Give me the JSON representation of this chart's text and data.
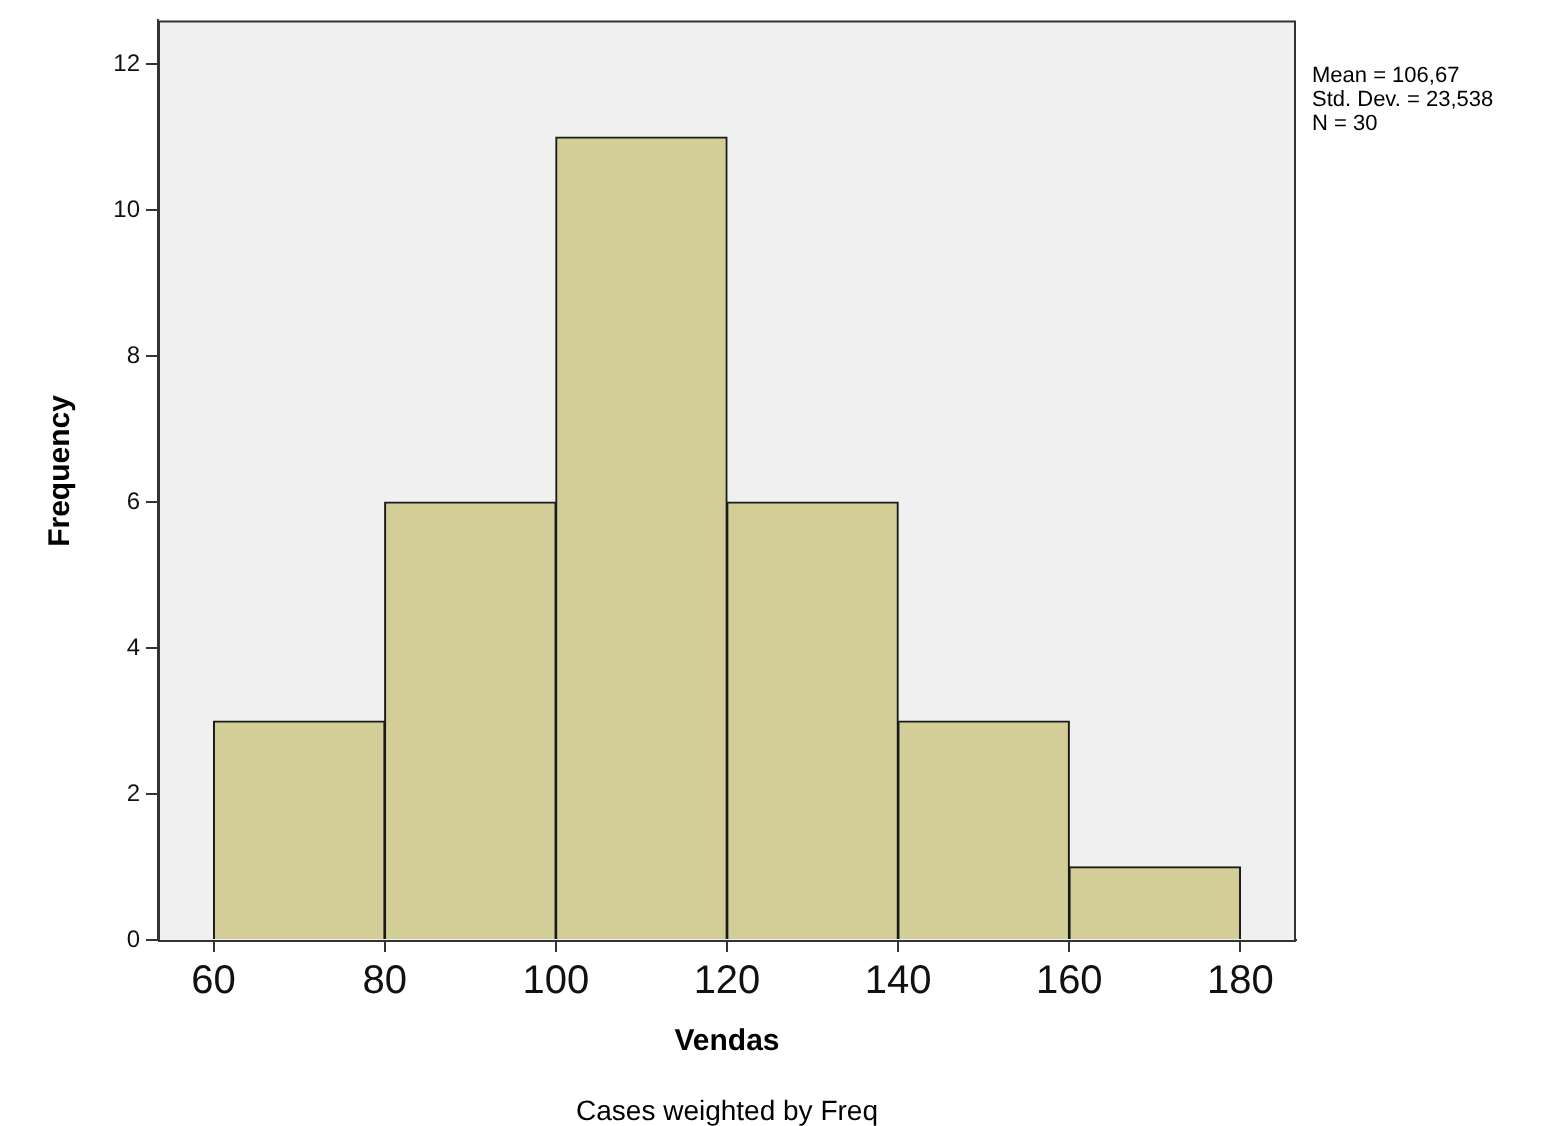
{
  "chart_data": {
    "type": "histogram",
    "xlabel": "Vendas",
    "ylabel": "Frequency",
    "bins": [
      60,
      80,
      100,
      120,
      140,
      160,
      180
    ],
    "values": [
      3,
      6,
      11,
      6,
      3,
      1
    ],
    "color": "#d3ce97",
    "xlim": [
      53.5,
      186.5
    ],
    "xticks": [
      60,
      80,
      100,
      120,
      140,
      160,
      180
    ],
    "ylim": [
      0,
      12.6
    ],
    "yticks": [
      0,
      2,
      4,
      6,
      8,
      10,
      12
    ],
    "grid": false,
    "legend": false,
    "annotations": [
      "Mean = 106,67",
      "Std. Dev. = 23,538",
      "N = 30",
      "Cases weighted by Freq"
    ]
  }
}
